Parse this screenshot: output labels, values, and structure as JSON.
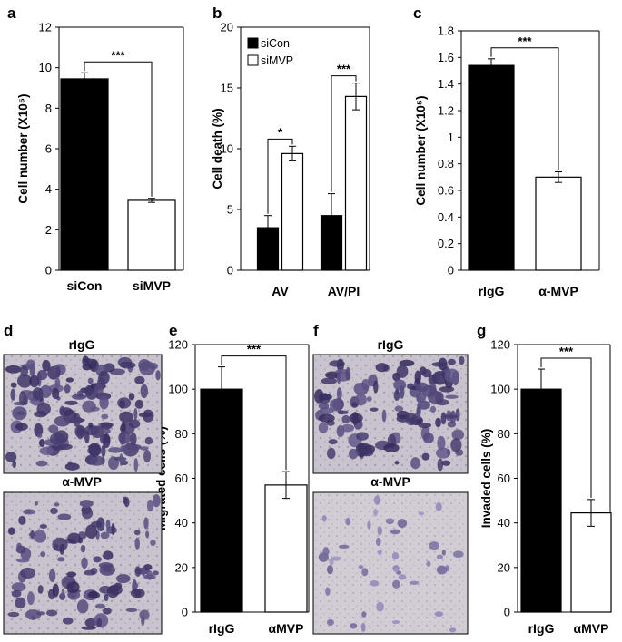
{
  "chart_data": [
    {
      "panel": "a",
      "type": "bar",
      "categories": [
        "siCon",
        "siMVP"
      ],
      "values": [
        9.45,
        3.45
      ],
      "errors": [
        0.3,
        0.1
      ],
      "fills": [
        "#000000",
        "#ffffff"
      ],
      "ylabel": "Cell number (X10⁵)",
      "ylim": [
        0,
        12
      ],
      "yticks": [
        0,
        2,
        4,
        6,
        8,
        10,
        12
      ],
      "annotations": [
        {
          "label": "***",
          "between": [
            0,
            1
          ]
        }
      ]
    },
    {
      "panel": "b",
      "type": "bar",
      "categories": [
        "AV",
        "AV/PI"
      ],
      "series": [
        {
          "name": "siCon",
          "values": [
            3.5,
            4.5
          ],
          "errors": [
            1.0,
            1.8
          ],
          "fill": "#000000"
        },
        {
          "name": "siMVP",
          "values": [
            9.6,
            14.3
          ],
          "errors": [
            0.6,
            1.1
          ],
          "fill": "#ffffff"
        }
      ],
      "ylabel": "Cell death (%)",
      "ylim": [
        0,
        20
      ],
      "yticks": [
        0,
        5,
        10,
        15,
        20
      ],
      "legend": "top-left",
      "annotations": [
        {
          "label": "*",
          "category": 0
        },
        {
          "label": "***",
          "category": 1
        }
      ]
    },
    {
      "panel": "c",
      "type": "bar",
      "categories": [
        "rIgG",
        "α-MVP"
      ],
      "values": [
        1.54,
        0.7
      ],
      "errors": [
        0.05,
        0.04
      ],
      "fills": [
        "#000000",
        "#ffffff"
      ],
      "ylabel": "Cell number (X10⁵)",
      "ylim": [
        0,
        1.8
      ],
      "yticks": [
        "0",
        "0.2",
        "0.4",
        "0.6",
        "0.8",
        "1",
        "1.2",
        "1.4",
        "1.6",
        "1.8"
      ],
      "annotations": [
        {
          "label": "***",
          "between": [
            0,
            1
          ]
        }
      ]
    },
    {
      "panel": "e",
      "type": "bar",
      "categories": [
        "rIgG",
        "αMVP"
      ],
      "values": [
        100,
        57
      ],
      "errors": [
        10,
        6
      ],
      "fills": [
        "#000000",
        "#ffffff"
      ],
      "ylabel": "Migrated cells (%)",
      "ylim": [
        0,
        120
      ],
      "yticks": [
        0,
        20,
        40,
        60,
        80,
        100,
        120
      ],
      "annotations": [
        {
          "label": "***",
          "between": [
            0,
            1
          ]
        }
      ]
    },
    {
      "panel": "g",
      "type": "bar",
      "categories": [
        "rIgG",
        "αMVP"
      ],
      "values": [
        100,
        44.5
      ],
      "errors": [
        9,
        6
      ],
      "fills": [
        "#000000",
        "#ffffff"
      ],
      "ylabel": "Invaded cells (%)",
      "ylim": [
        0,
        120
      ],
      "yticks": [
        0,
        20,
        40,
        60,
        80,
        100,
        120
      ],
      "annotations": [
        {
          "label": "***",
          "between": [
            0,
            1
          ]
        }
      ]
    }
  ],
  "micrographs": [
    {
      "panel": "d",
      "top_label": "rIgG",
      "bottom_label": "α-MVP"
    },
    {
      "panel": "f",
      "top_label": "rIgG",
      "bottom_label": "α-MVP"
    }
  ]
}
